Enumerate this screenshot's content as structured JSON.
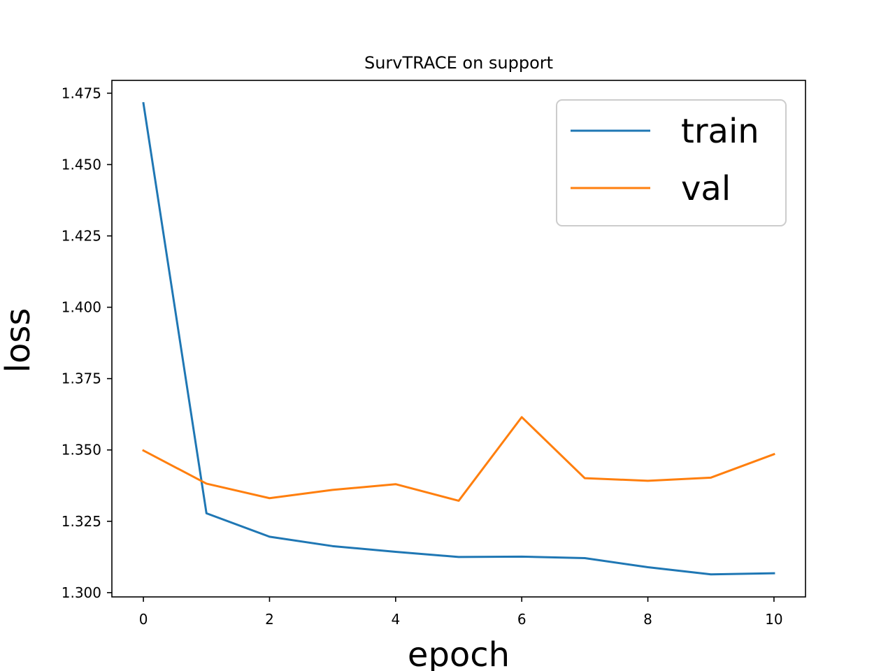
{
  "chart_data": {
    "type": "line",
    "title": "SurvTRACE on support",
    "xlabel": "epoch",
    "ylabel": "loss",
    "xlim": [
      -0.5,
      10.5
    ],
    "ylim": [
      1.2985,
      1.4795
    ],
    "x_ticks": [
      0,
      2,
      4,
      6,
      8,
      10
    ],
    "y_ticks": [
      1.3,
      1.325,
      1.35,
      1.375,
      1.4,
      1.425,
      1.45,
      1.475
    ],
    "x_tick_labels": [
      "0",
      "2",
      "4",
      "6",
      "8",
      "10"
    ],
    "y_tick_labels": [
      "1.300",
      "1.325",
      "1.350",
      "1.375",
      "1.400",
      "1.425",
      "1.450",
      "1.475"
    ],
    "x": [
      0,
      1,
      2,
      3,
      4,
      5,
      6,
      7,
      8,
      9,
      10
    ],
    "series": [
      {
        "name": "train",
        "color": "#1f77b4",
        "values": [
          1.4715,
          1.3278,
          1.3196,
          1.3163,
          1.3143,
          1.3125,
          1.3126,
          1.3121,
          1.3089,
          1.3064,
          1.3068
        ]
      },
      {
        "name": "val",
        "color": "#ff7f0e",
        "values": [
          1.3498,
          1.3382,
          1.3331,
          1.336,
          1.338,
          1.3322,
          1.3615,
          1.3401,
          1.3392,
          1.3403,
          1.3485
        ]
      }
    ],
    "legend": {
      "position": "top-right",
      "entries": [
        "train",
        "val"
      ]
    },
    "grid": false
  }
}
